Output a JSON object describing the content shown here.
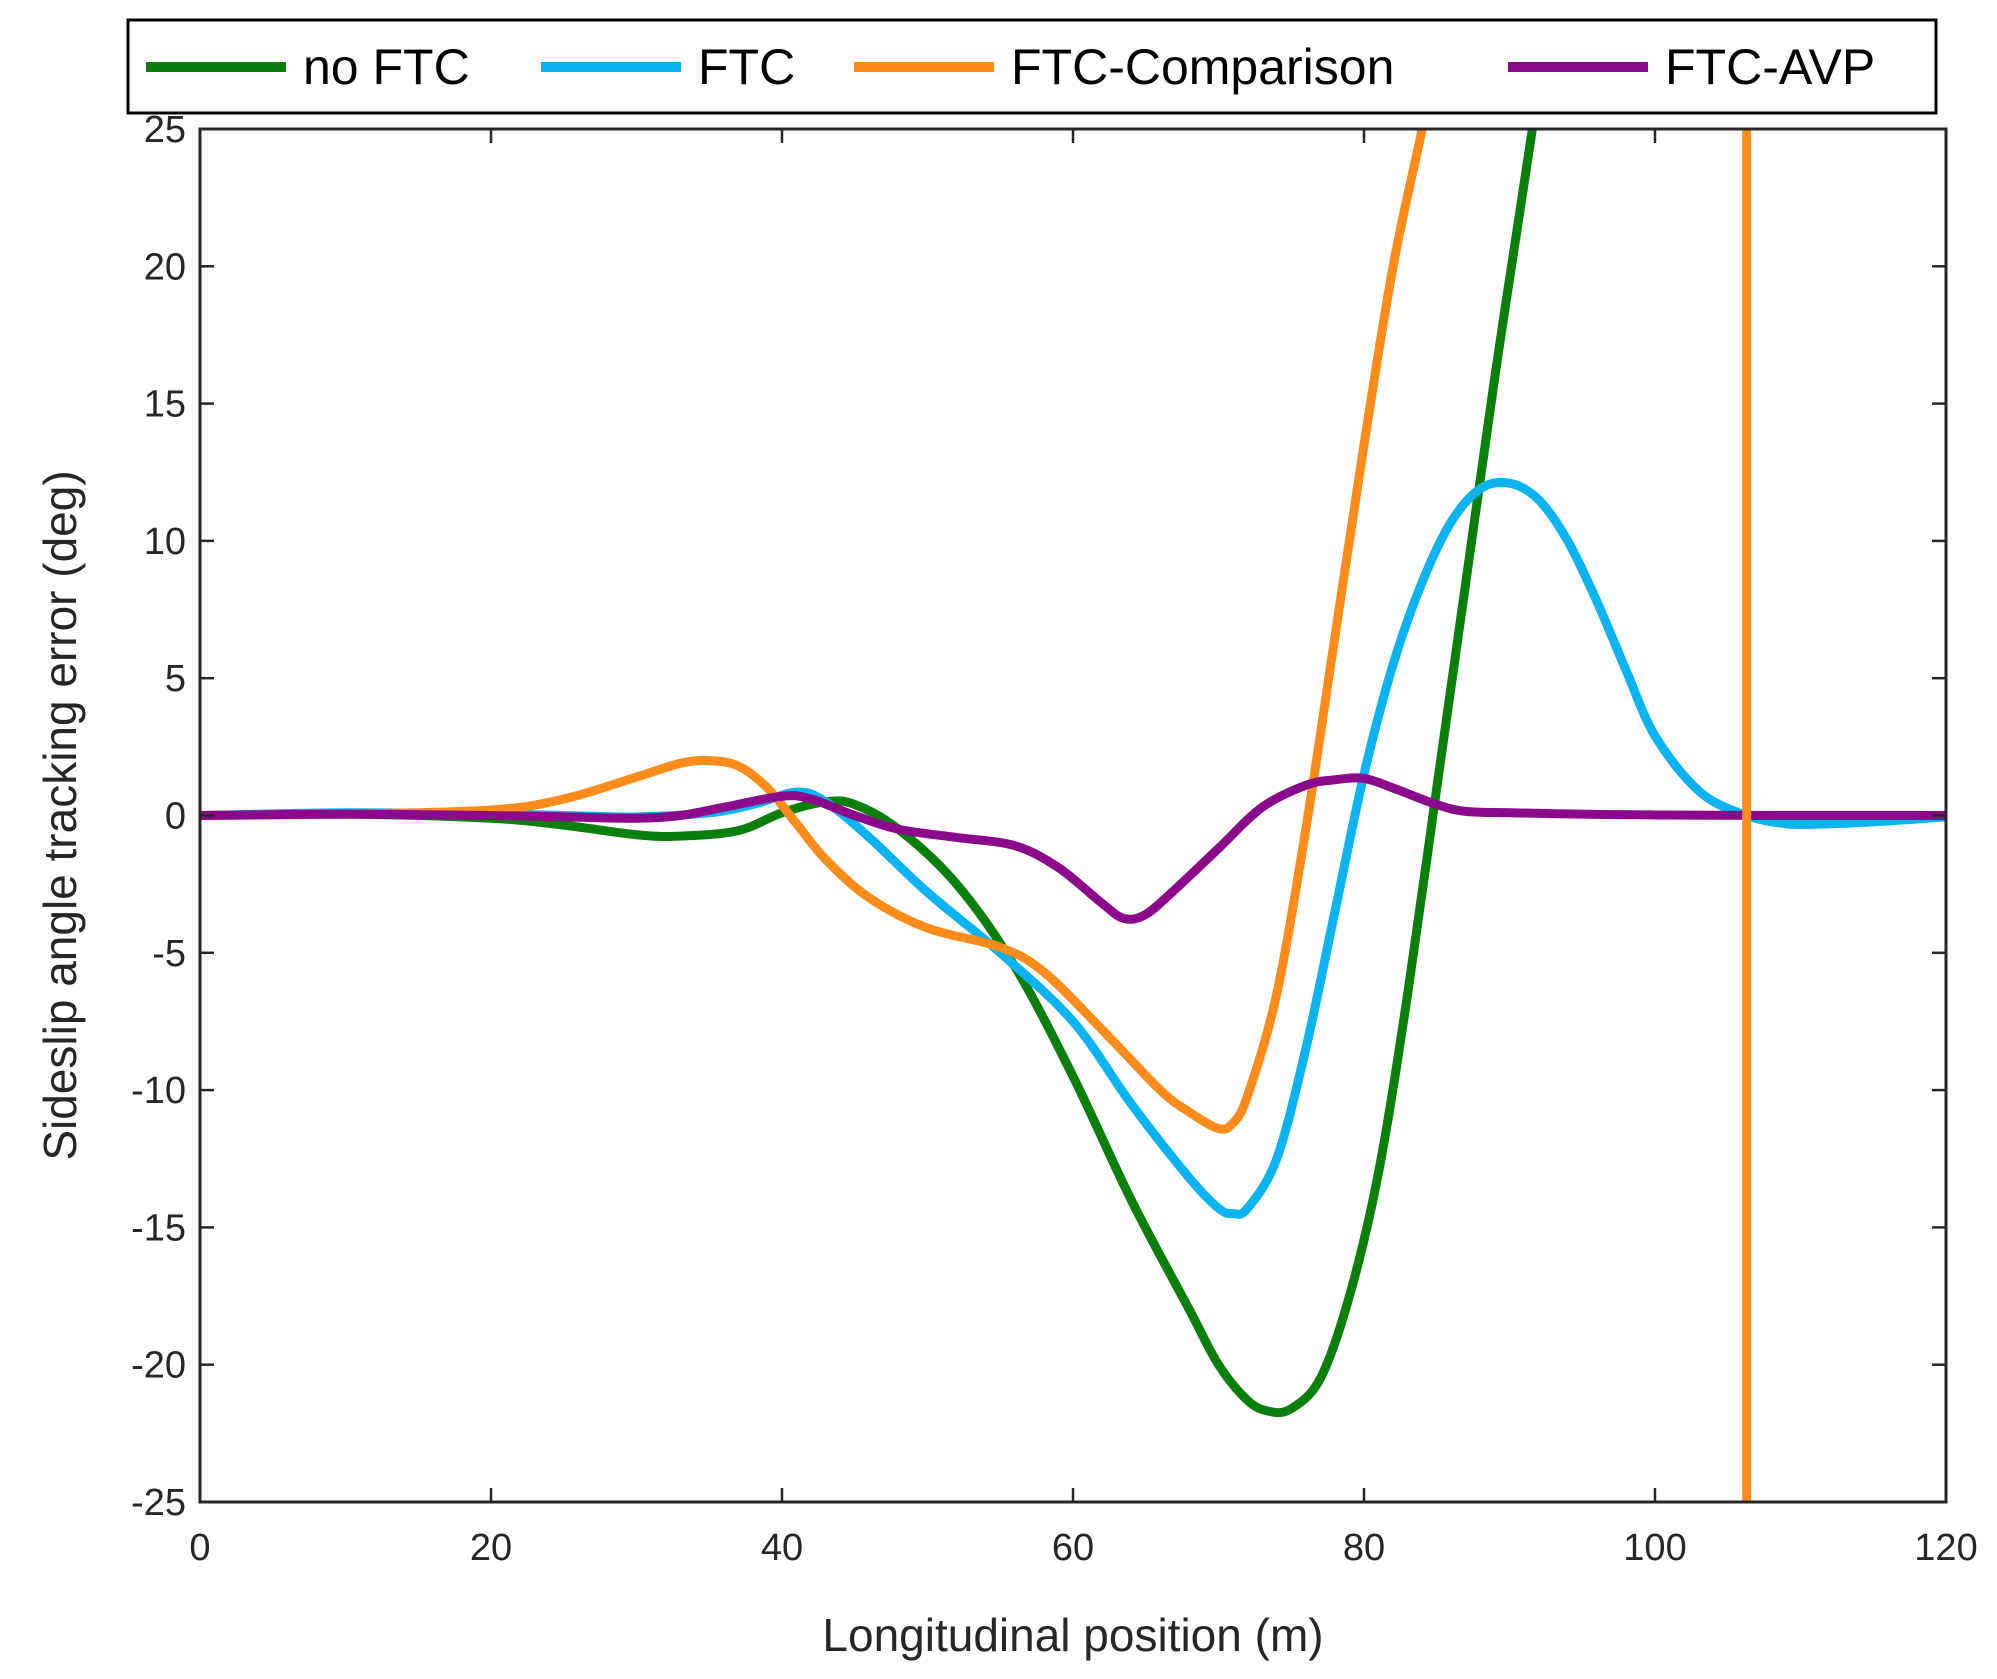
{
  "chart_data": {
    "type": "line",
    "title": "",
    "xlabel": "Longitudinal position (m)",
    "ylabel": "Sideslip angle tracking error (deg)",
    "xlim": [
      0,
      120
    ],
    "ylim": [
      -25,
      25
    ],
    "xticks": [
      0,
      20,
      40,
      60,
      80,
      100,
      120
    ],
    "yticks": [
      -25,
      -20,
      -15,
      -10,
      -5,
      0,
      5,
      10,
      15,
      20,
      25
    ],
    "grid": false,
    "legend_position": "top",
    "series": [
      {
        "name": "no FTC",
        "color": "#0b7f0b",
        "x": [
          0,
          10,
          20,
          25,
          30,
          33,
          37,
          40,
          43,
          45,
          48,
          52,
          56,
          60,
          64,
          68,
          70,
          72,
          73.5,
          75,
          77,
          79,
          81,
          83,
          85,
          87,
          89,
          91,
          92
        ],
        "y": [
          0,
          0.05,
          -0.1,
          -0.35,
          -0.7,
          -0.75,
          -0.55,
          0.1,
          0.5,
          0.4,
          -0.5,
          -2.5,
          -5.5,
          -9.5,
          -14,
          -18,
          -20,
          -21.3,
          -21.7,
          -21.6,
          -20.5,
          -17.5,
          -13,
          -6.5,
          1,
          8.5,
          16,
          23,
          26.5
        ]
      },
      {
        "name": "FTC",
        "color": "#0bb4f0",
        "x": [
          0,
          10,
          20,
          25,
          30,
          35,
          38,
          41,
          43,
          46,
          50,
          55,
          60,
          64,
          68,
          70,
          71,
          72,
          74,
          76,
          78,
          80,
          82,
          84,
          86,
          88,
          90,
          92,
          94,
          96,
          98,
          100,
          103,
          106,
          109,
          112,
          116,
          120
        ],
        "y": [
          0,
          0.1,
          0.05,
          0,
          -0.05,
          0.1,
          0.4,
          0.85,
          0.5,
          -0.8,
          -2.8,
          -5,
          -7.5,
          -10.5,
          -13.2,
          -14.3,
          -14.5,
          -14.3,
          -12.5,
          -8.5,
          -3.5,
          1.5,
          5.5,
          8.5,
          10.7,
          11.9,
          12.1,
          11.5,
          10,
          7.8,
          5.3,
          2.9,
          0.9,
          0.05,
          -0.3,
          -0.3,
          -0.2,
          -0.05
        ]
      },
      {
        "name": "FTC-Comparison",
        "color": "#ff8c1a",
        "x": [
          0,
          10,
          20,
          25,
          30,
          33,
          35,
          37,
          39,
          41,
          43,
          46,
          50,
          55,
          58,
          62,
          66,
          68,
          70,
          71,
          72,
          74,
          76,
          78,
          80,
          82,
          84,
          84.5
        ],
        "y": [
          0,
          0.05,
          0.2,
          0.6,
          1.4,
          1.9,
          2.0,
          1.8,
          1.0,
          -0.3,
          -1.6,
          -3.0,
          -4.1,
          -4.8,
          -5.7,
          -7.8,
          -10.0,
          -10.8,
          -11.4,
          -11.2,
          -10.2,
          -6.5,
          -0.5,
          6.5,
          13.5,
          20,
          25,
          26.5
        ]
      },
      {
        "name": "FTC-AVP",
        "color": "#8b0a8b",
        "x": [
          0,
          10,
          20,
          25,
          30,
          33,
          36,
          40,
          42,
          45,
          48,
          52,
          56,
          59,
          62,
          63.5,
          65,
          67,
          70,
          73,
          76,
          78,
          80,
          82,
          85,
          87,
          90,
          95,
          100,
          110,
          120
        ],
        "y": [
          0,
          0.05,
          0,
          -0.05,
          -0.1,
          0,
          0.3,
          0.7,
          0.6,
          0,
          -0.5,
          -0.8,
          -1.1,
          -1.9,
          -3.2,
          -3.75,
          -3.6,
          -2.7,
          -1.2,
          0.3,
          1.1,
          1.3,
          1.35,
          1.0,
          0.4,
          0.15,
          0.1,
          0.05,
          0.02,
          0,
          0
        ]
      }
    ],
    "vertical_line": {
      "series": "FTC-Comparison",
      "x": 106.3,
      "color": "#ff8c1a"
    }
  }
}
